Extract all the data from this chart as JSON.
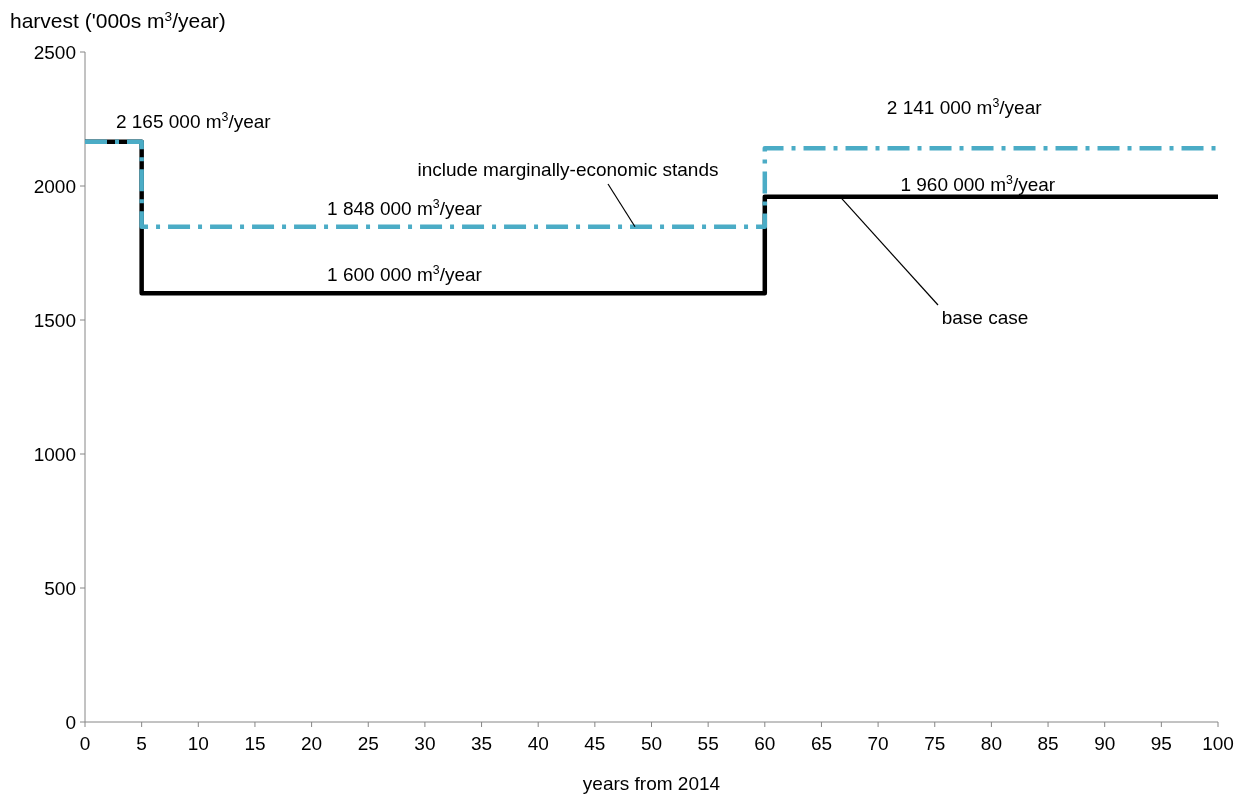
{
  "chart_data": {
    "type": "step",
    "xlabel": "years from 2014",
    "ylabel": "harvest ('000s m$^{3}$/year)",
    "xlim": [
      0,
      100
    ],
    "xticks": [
      0,
      5,
      10,
      15,
      20,
      25,
      30,
      35,
      40,
      45,
      50,
      55,
      60,
      65,
      70,
      75,
      80,
      85,
      90,
      95,
      100
    ],
    "ylim": [
      0,
      2500
    ],
    "yticks": [
      0,
      500,
      1000,
      1500,
      2000,
      2500
    ],
    "grid": false,
    "legend": false,
    "series": [
      {
        "name": "base case",
        "color": "#000000",
        "line_style": "solid",
        "x": [
          0,
          5,
          60,
          100
        ],
        "values": [
          2165,
          1600,
          1960,
          1960
        ]
      },
      {
        "name": "include marginally-economic stands",
        "color": "#4bacc6",
        "line_style": "dashed",
        "x": [
          0,
          5,
          60,
          100
        ],
        "values": [
          2165,
          1848,
          2141,
          2141
        ]
      }
    ],
    "annotations": [
      {
        "text": "2 165 000 m$^{3}$/year",
        "x": 2.5,
        "y": 2165
      },
      {
        "text": "1 848 000 m$^{3}$/year",
        "x": 28.2,
        "y": 1848
      },
      {
        "text": "1 600 000 m$^{3}$/year",
        "x": 28.2,
        "y": 1600
      },
      {
        "text": "2 141 000 m$^{3}$/year",
        "x": 77.6,
        "y": 2141
      },
      {
        "text": "1 960 000 m$^{3}$/year",
        "x": 78.8,
        "y": 1960
      }
    ]
  }
}
